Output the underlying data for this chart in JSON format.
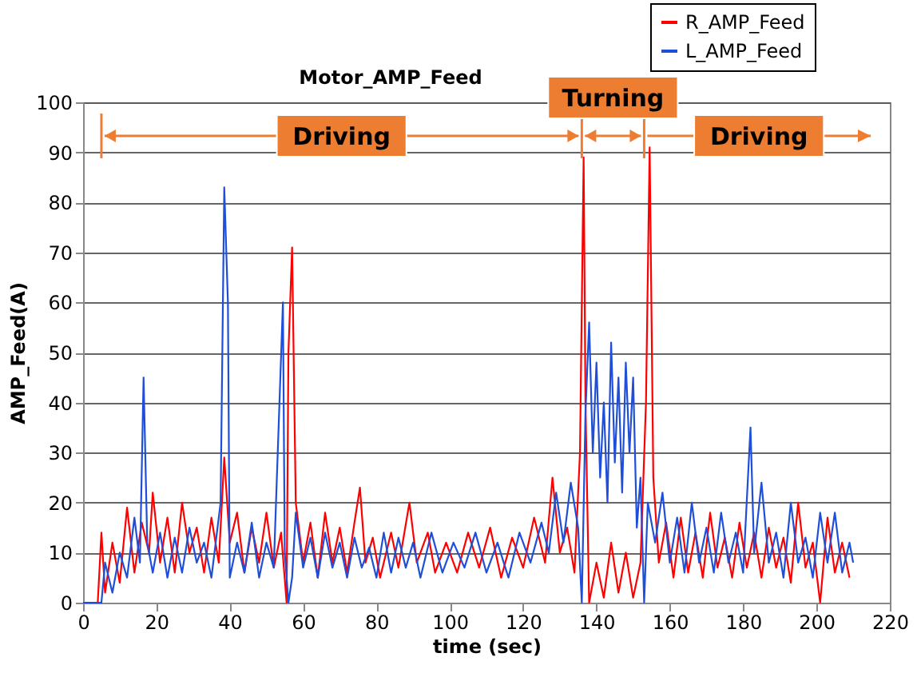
{
  "chart_data": {
    "type": "line",
    "title": "Motor_AMP_Feed",
    "xlabel": "time (sec)",
    "ylabel": "AMP_Feed(A)",
    "xlim": [
      0,
      220
    ],
    "xticks": [
      0,
      20,
      40,
      60,
      80,
      100,
      120,
      140,
      160,
      180,
      200,
      220
    ],
    "ylim": [
      0,
      100
    ],
    "yticks": [
      0,
      10,
      20,
      30,
      40,
      50,
      60,
      70,
      80,
      90,
      100
    ],
    "grid": "y",
    "legend": "top right",
    "marker": "none",
    "line_style": "solid",
    "annotations": [
      "Driving",
      "Turning",
      "Driving"
    ],
    "ref_lines": [
      {
        "axis": "x",
        "value": 5,
        "color": "#ed7d31"
      },
      {
        "axis": "x",
        "value": 136,
        "color": "#ed7d31"
      },
      {
        "axis": "x",
        "value": 153,
        "color": "#ed7d31"
      }
    ],
    "series": [
      {
        "name": "R_AMP_Feed",
        "color": "#ff0000",
        "x": [
          0,
          4,
          5,
          6,
          8,
          10,
          12,
          14,
          16,
          18,
          19,
          21,
          23,
          25,
          27,
          29,
          31,
          33,
          35,
          37,
          38.5,
          40,
          42,
          44,
          46,
          48,
          50,
          52,
          54,
          55.5,
          56,
          57,
          58,
          60,
          62,
          64,
          66,
          68,
          70,
          72,
          74,
          75.5,
          77,
          79,
          81,
          84,
          86,
          89,
          91,
          94,
          96,
          99,
          102,
          105,
          108,
          111,
          114,
          117,
          120,
          123,
          126,
          128,
          130,
          132,
          134,
          135.5,
          136.5,
          137,
          138,
          140,
          142,
          144,
          146,
          148,
          150,
          152,
          153.5,
          154.5,
          155.5,
          157,
          159,
          161,
          163,
          165,
          167,
          169,
          171,
          173,
          175,
          177,
          179,
          181,
          183,
          185,
          187,
          189,
          191,
          193,
          195,
          197,
          199,
          201,
          203,
          205,
          207,
          209
        ],
        "values": [
          0,
          0,
          14,
          2,
          12,
          4,
          19,
          6,
          16,
          10,
          22,
          8,
          17,
          6,
          20,
          10,
          15,
          6,
          17,
          8,
          29,
          12,
          18,
          6,
          15,
          8,
          18,
          7,
          14,
          0,
          50,
          71,
          20,
          8,
          16,
          5,
          18,
          8,
          15,
          6,
          16,
          23,
          8,
          13,
          5,
          14,
          7,
          20,
          8,
          14,
          6,
          12,
          6,
          14,
          7,
          15,
          5,
          13,
          7,
          17,
          8,
          25,
          10,
          15,
          6,
          30,
          89,
          40,
          0,
          8,
          1,
          12,
          2,
          10,
          1,
          8,
          40,
          91,
          25,
          8,
          16,
          5,
          17,
          6,
          14,
          5,
          18,
          7,
          13,
          5,
          16,
          7,
          14,
          5,
          15,
          7,
          13,
          4,
          20,
          7,
          12,
          0,
          17,
          6,
          12,
          5
        ]
      },
      {
        "name": "L_AMP_Feed",
        "color": "#1f4fd8",
        "x": [
          0,
          5,
          6,
          8,
          10,
          12,
          14,
          15.5,
          16.5,
          17.5,
          19,
          21,
          23,
          25,
          27,
          29,
          31,
          33,
          35,
          37.5,
          38.5,
          39.5,
          40,
          42,
          44,
          46,
          48,
          50,
          52,
          54.5,
          55,
          56,
          57,
          58,
          60,
          62,
          64,
          66,
          68,
          70,
          72,
          74,
          76,
          78,
          80,
          82,
          84,
          86,
          88,
          90,
          92,
          95,
          98,
          101,
          104,
          107,
          110,
          113,
          116,
          119,
          122,
          125,
          127,
          129,
          131,
          133,
          135,
          136,
          137,
          138,
          139,
          140,
          141,
          142,
          143,
          144,
          145,
          146,
          147,
          148,
          149,
          150,
          151,
          152,
          153,
          154,
          156,
          158,
          160,
          162,
          164,
          166,
          168,
          170,
          172,
          174,
          176,
          178,
          180,
          182,
          183,
          185,
          187,
          189,
          191,
          193,
          195,
          197,
          199,
          201,
          203,
          205,
          207,
          209,
          210
        ],
        "values": [
          0,
          0,
          8,
          2,
          10,
          5,
          17,
          8,
          45,
          12,
          6,
          14,
          5,
          13,
          6,
          15,
          8,
          12,
          5,
          20,
          83,
          60,
          5,
          12,
          6,
          16,
          5,
          12,
          7,
          60,
          10,
          0,
          5,
          18,
          7,
          13,
          5,
          14,
          7,
          12,
          5,
          13,
          7,
          11,
          5,
          14,
          6,
          13,
          7,
          12,
          5,
          14,
          6,
          12,
          7,
          14,
          6,
          12,
          5,
          14,
          8,
          16,
          10,
          22,
          12,
          24,
          15,
          0,
          38,
          56,
          30,
          48,
          25,
          40,
          20,
          52,
          28,
          45,
          22,
          48,
          30,
          45,
          15,
          25,
          0,
          20,
          12,
          22,
          8,
          17,
          6,
          20,
          8,
          15,
          6,
          18,
          8,
          14,
          6,
          35,
          10,
          24,
          8,
          14,
          5,
          20,
          8,
          13,
          5,
          18,
          8,
          18,
          6,
          12,
          8
        ]
      }
    ]
  }
}
